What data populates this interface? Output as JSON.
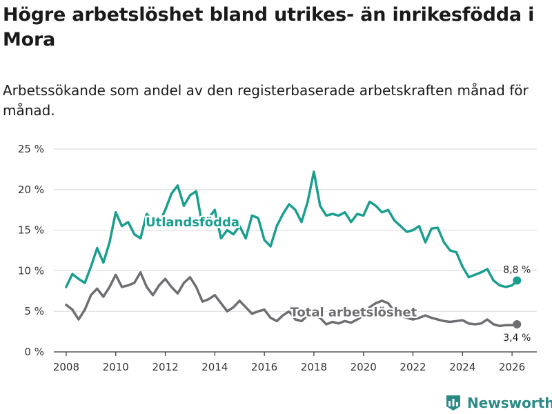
{
  "title": "Högre arbetslöshet bland utrikes- än inrikesfödda i Mora",
  "subtitle": "Arbetssökande som andel av den registerbaserade arbetskraften månad för månad.",
  "brand": {
    "name": "Newsworthy",
    "icon": "bar-chart-logo-icon"
  },
  "colors": {
    "foreign": "#1a9e8f",
    "total": "#6e6e72",
    "grid": "#dcdcdc",
    "axis": "#333333"
  },
  "chart_data": {
    "type": "line",
    "title": "Högre arbetslöshet bland utrikes- än inrikesfödda i Mora",
    "subtitle": "Arbetssökande som andel av den registerbaserade arbetskraften månad för månad.",
    "xlabel": "",
    "ylabel": "",
    "xlim": [
      2007.5,
      2027.0
    ],
    "ylim": [
      0,
      25
    ],
    "grid": true,
    "y_ticks": [
      0,
      5,
      10,
      15,
      20,
      25
    ],
    "y_tick_labels": [
      "0 %",
      "5 %",
      "10 %",
      "15 %",
      "20 %",
      "25 %"
    ],
    "x_ticks": [
      2008,
      2010,
      2012,
      2014,
      2016,
      2018,
      2020,
      2022,
      2024,
      2026
    ],
    "x_tick_labels": [
      "2008",
      "2010",
      "2012",
      "2014",
      "2016",
      "2018",
      "2020",
      "2022",
      "2024",
      "2026"
    ],
    "series": [
      {
        "name": "Utlandsfödda",
        "label": "Utlandsfödda",
        "end_label": "8,8 %",
        "x": [
          2008.0,
          2008.25,
          2008.5,
          2008.75,
          2009.0,
          2009.25,
          2009.5,
          2009.75,
          2010.0,
          2010.25,
          2010.5,
          2010.75,
          2011.0,
          2011.25,
          2011.5,
          2011.75,
          2012.0,
          2012.25,
          2012.5,
          2012.75,
          2013.0,
          2013.25,
          2013.5,
          2013.75,
          2014.0,
          2014.25,
          2014.5,
          2014.75,
          2015.0,
          2015.25,
          2015.5,
          2015.75,
          2016.0,
          2016.25,
          2016.5,
          2016.75,
          2017.0,
          2017.25,
          2017.5,
          2017.75,
          2018.0,
          2018.25,
          2018.5,
          2018.75,
          2019.0,
          2019.25,
          2019.5,
          2019.75,
          2020.0,
          2020.25,
          2020.5,
          2020.75,
          2021.0,
          2021.25,
          2021.5,
          2021.75,
          2022.0,
          2022.25,
          2022.5,
          2022.75,
          2023.0,
          2023.25,
          2023.5,
          2023.75,
          2024.0,
          2024.25,
          2024.5,
          2024.75,
          2025.0,
          2025.25,
          2025.5,
          2025.75,
          2026.0,
          2026.2
        ],
        "values": [
          8.0,
          9.6,
          9.0,
          8.5,
          10.5,
          12.8,
          11.0,
          13.5,
          17.2,
          15.5,
          16.0,
          14.5,
          14.0,
          17.0,
          16.2,
          15.8,
          17.5,
          19.5,
          20.5,
          18.0,
          19.3,
          19.8,
          15.5,
          16.5,
          17.5,
          14.0,
          15.0,
          14.5,
          15.5,
          14.0,
          16.8,
          16.5,
          13.8,
          13.0,
          15.5,
          17.0,
          18.2,
          17.5,
          16.0,
          18.5,
          22.2,
          18.0,
          16.8,
          17.0,
          16.8,
          17.2,
          16.0,
          17.0,
          16.8,
          18.5,
          18.0,
          17.2,
          17.5,
          16.2,
          15.5,
          14.8,
          15.0,
          15.5,
          13.5,
          15.2,
          15.3,
          13.5,
          12.5,
          12.3,
          10.5,
          9.2,
          9.5,
          9.8,
          10.2,
          8.8,
          8.2,
          8.0,
          8.2,
          8.8
        ]
      },
      {
        "name": "Total arbetslöshet",
        "label": "Total arbetslöshet",
        "end_label": "3,4 %",
        "x": [
          2008.0,
          2008.25,
          2008.5,
          2008.75,
          2009.0,
          2009.25,
          2009.5,
          2009.75,
          2010.0,
          2010.25,
          2010.5,
          2010.75,
          2011.0,
          2011.25,
          2011.5,
          2011.75,
          2012.0,
          2012.25,
          2012.5,
          2012.75,
          2013.0,
          2013.25,
          2013.5,
          2013.75,
          2014.0,
          2014.25,
          2014.5,
          2014.75,
          2015.0,
          2015.25,
          2015.5,
          2015.75,
          2016.0,
          2016.25,
          2016.5,
          2016.75,
          2017.0,
          2017.25,
          2017.5,
          2017.75,
          2018.0,
          2018.25,
          2018.5,
          2018.75,
          2019.0,
          2019.25,
          2019.5,
          2019.75,
          2020.0,
          2020.25,
          2020.5,
          2020.75,
          2021.0,
          2021.25,
          2021.5,
          2021.75,
          2022.0,
          2022.25,
          2022.5,
          2022.75,
          2023.0,
          2023.25,
          2023.5,
          2023.75,
          2024.0,
          2024.25,
          2024.5,
          2024.75,
          2025.0,
          2025.25,
          2025.5,
          2025.75,
          2026.0,
          2026.2
        ],
        "values": [
          5.8,
          5.2,
          4.0,
          5.2,
          7.0,
          7.8,
          6.8,
          8.0,
          9.5,
          8.0,
          8.2,
          8.5,
          9.8,
          8.0,
          7.0,
          8.2,
          9.0,
          8.0,
          7.2,
          8.5,
          9.2,
          8.0,
          6.2,
          6.5,
          7.0,
          6.0,
          5.0,
          5.5,
          6.3,
          5.5,
          4.7,
          5.0,
          5.2,
          4.2,
          3.8,
          4.5,
          5.0,
          4.0,
          3.8,
          4.5,
          4.5,
          4.2,
          3.4,
          3.7,
          3.5,
          3.8,
          3.6,
          4.0,
          4.5,
          5.5,
          6.0,
          6.3,
          6.0,
          5.0,
          4.5,
          4.2,
          4.0,
          4.2,
          4.5,
          4.2,
          4.0,
          3.8,
          3.7,
          3.8,
          3.9,
          3.5,
          3.4,
          3.5,
          4.0,
          3.4,
          3.2,
          3.3,
          3.3,
          3.4
        ]
      }
    ]
  }
}
